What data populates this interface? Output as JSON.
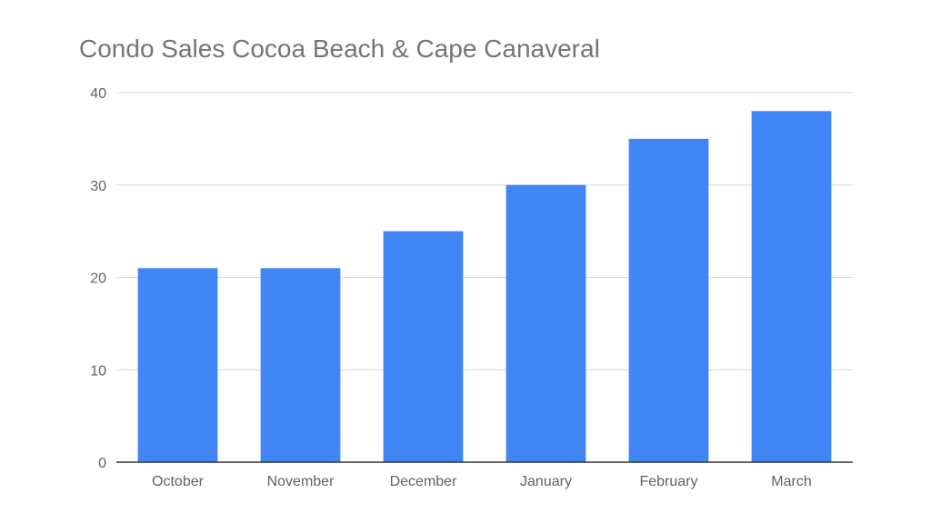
{
  "chart_data": {
    "type": "bar",
    "title": "Condo Sales Cocoa Beach & Cape Canaveral",
    "xlabel": "",
    "ylabel": "",
    "categories": [
      "October",
      "November",
      "December",
      "January",
      "February",
      "March"
    ],
    "values": [
      21,
      21,
      25,
      30,
      35,
      38
    ],
    "ylim": [
      0,
      40
    ],
    "yticks": [
      0,
      10,
      20,
      30,
      40
    ],
    "grid": true,
    "legend": "none",
    "bar_color": "#4285f4"
  }
}
